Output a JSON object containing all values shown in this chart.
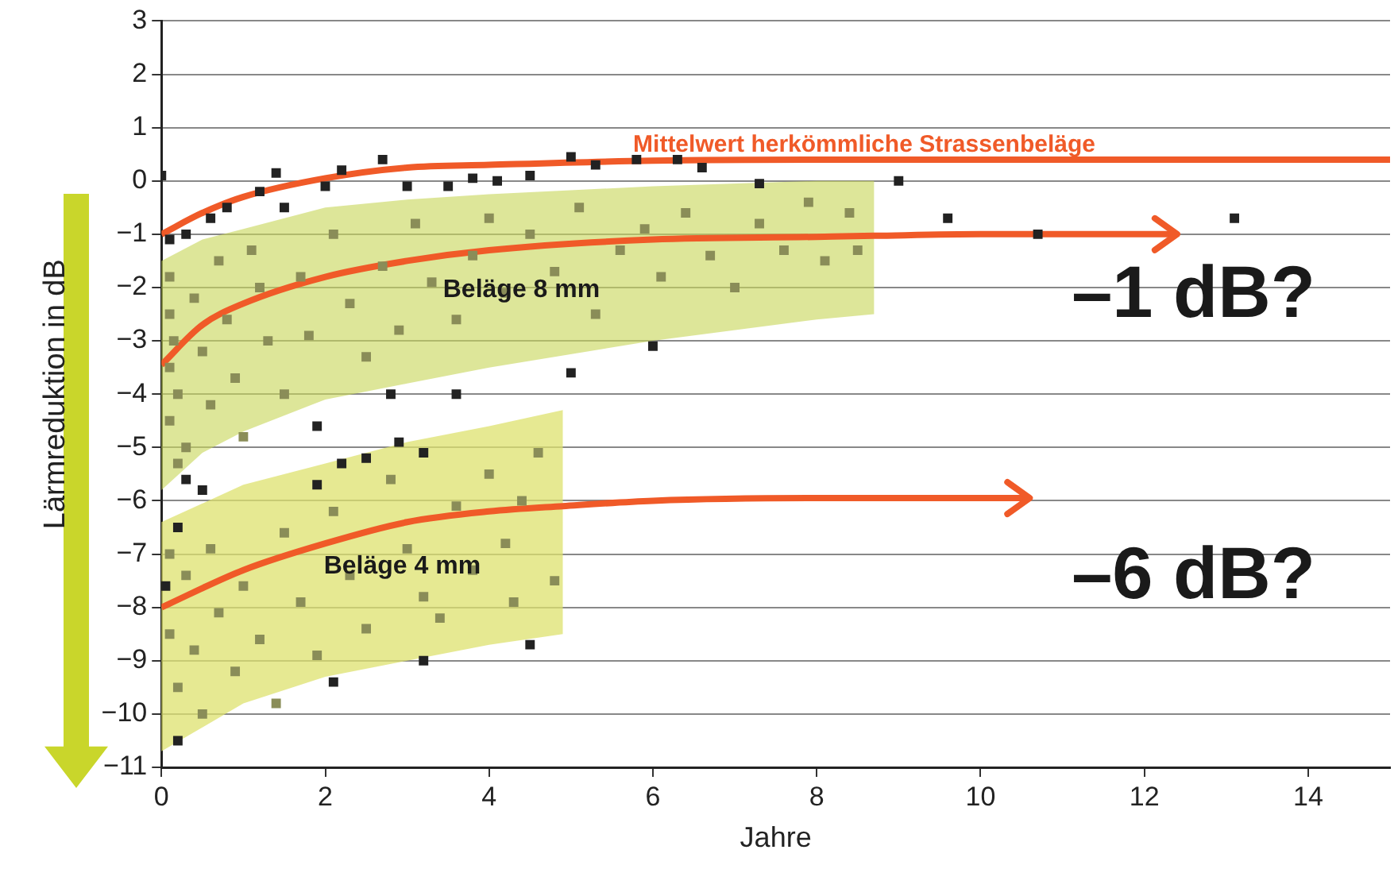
{
  "chart_data": {
    "type": "scatter",
    "xlabel": "Jahre",
    "ylabel": "Lärmreduktion in dB",
    "xlim": [
      0,
      15
    ],
    "xticks": [
      0,
      2,
      4,
      6,
      8,
      10,
      12,
      14
    ],
    "ylim": [
      -11,
      3
    ],
    "yticks": [
      {
        "value": -11,
        "label": "−11"
      },
      {
        "value": -10,
        "label": "−10"
      },
      {
        "value": -9,
        "label": "−9"
      },
      {
        "value": -8,
        "label": "−8"
      },
      {
        "value": -7,
        "label": "−7"
      },
      {
        "value": -6,
        "label": "−6"
      },
      {
        "value": -5,
        "label": "−5"
      },
      {
        "value": -4,
        "label": "−4"
      },
      {
        "value": -3,
        "label": "−3"
      },
      {
        "value": -2,
        "label": "−2"
      },
      {
        "value": -1,
        "label": "−1"
      },
      0,
      1,
      2,
      3
    ],
    "grid": "y",
    "legend": false,
    "marker": "square",
    "series": [
      {
        "color": "#8a8d58",
        "x": [
          0.1,
          0.1,
          0.15,
          0.1,
          0.2,
          0.1,
          0.3,
          0.2,
          0.4,
          0.5,
          0.6,
          0.7,
          0.8,
          0.9,
          1.0,
          1.1,
          1.2,
          1.3,
          1.5,
          1.7,
          1.8,
          2.1,
          2.3,
          2.5,
          2.7,
          2.9,
          3.1,
          3.3,
          3.6,
          3.8,
          4.0,
          4.2,
          4.5,
          4.8,
          5.1,
          5.3,
          5.6,
          5.9,
          6.1,
          6.4,
          6.7,
          7.0,
          7.3,
          7.6,
          7.9,
          8.1,
          8.4,
          8.5,
          0.1,
          0.1,
          0.2,
          0.3,
          0.4,
          0.5,
          0.6,
          0.7,
          0.9,
          1.0,
          1.2,
          1.4,
          1.5,
          1.7,
          1.9,
          2.1,
          2.3,
          2.5,
          2.8,
          3.0,
          3.2,
          3.4,
          3.6,
          3.8,
          4.0,
          4.2,
          4.3,
          4.6,
          4.8,
          4.4
        ],
        "values": [
          -1.8,
          -2.5,
          -3,
          -3.5,
          -4,
          -4.5,
          -5,
          -5.3,
          -2.2,
          -3.2,
          -4.2,
          -1.5,
          -2.6,
          -3.7,
          -4.8,
          -1.3,
          -2.0,
          -3.0,
          -4.0,
          -1.8,
          -2.9,
          -1.0,
          -2.3,
          -3.3,
          -1.6,
          -2.8,
          -0.8,
          -1.9,
          -2.6,
          -1.4,
          -0.7,
          -2.1,
          -1.0,
          -1.7,
          -0.5,
          -2.5,
          -1.3,
          -0.9,
          -1.8,
          -0.6,
          -1.4,
          -2.0,
          -0.8,
          -1.3,
          -0.4,
          -1.5,
          -0.6,
          -1.3,
          -7,
          -8.5,
          -9.5,
          -7.4,
          -8.8,
          -10,
          -6.9,
          -8.1,
          -9.2,
          -7.6,
          -8.6,
          -9.8,
          -6.6,
          -7.9,
          -8.9,
          -6.2,
          -7.4,
          -8.4,
          -5.6,
          -6.9,
          -7.8,
          -8.2,
          -6.1,
          -7.3,
          -5.5,
          -6.8,
          -7.9,
          -5.1,
          -7.5,
          -6.0
        ]
      },
      {
        "color": "#222222",
        "x": [
          0,
          0.1,
          0.3,
          0.6,
          0.8,
          1.2,
          1.5,
          1.4,
          2.0,
          2.2,
          2.7,
          3.0,
          3.5,
          3.8,
          4.1,
          4.5,
          5,
          5.3,
          5.8,
          6.3,
          6.6,
          7.3,
          9.0,
          9.6,
          10.7,
          13.1,
          6,
          5.0,
          3.6,
          2.8,
          2.9,
          1.9,
          3.2,
          2.2,
          0.3,
          0.5,
          0.2,
          0.05,
          4.5,
          3.2,
          2.1,
          0.2,
          1.9,
          2.5
        ],
        "values": [
          0.1,
          -1.1,
          -1.0,
          -0.7,
          -0.5,
          -0.2,
          -0.5,
          0.15,
          -0.1,
          0.2,
          0.4,
          -0.1,
          -0.1,
          0.05,
          0,
          0.1,
          0.45,
          0.3,
          0.4,
          0.4,
          0.25,
          -0.05,
          0,
          -0.7,
          -1.0,
          -0.7,
          -3.1,
          -3.6,
          -4.0,
          -4.0,
          -4.9,
          -4.6,
          -5.1,
          -5.3,
          -5.6,
          -5.8,
          -6.5,
          -7.6,
          -8.7,
          -9.0,
          -9.4,
          -10.5,
          -5.7,
          -5.2
        ]
      },
      {
        "type": "line",
        "color": "#f05a28",
        "marker": "none",
        "x": [
          0,
          0.5,
          1,
          2,
          3,
          4,
          6,
          8,
          15
        ],
        "values": [
          -1.0,
          -0.6,
          -0.3,
          0.05,
          0.25,
          0.3,
          0.38,
          0.4,
          0.4
        ]
      },
      {
        "type": "line",
        "color": "#f05a28",
        "marker": "none",
        "x": [
          0,
          0.5,
          1,
          2,
          3,
          4,
          6,
          8,
          8.7,
          10,
          12.4
        ],
        "values": [
          -3.45,
          -2.7,
          -2.3,
          -1.8,
          -1.5,
          -1.3,
          -1.1,
          -1.05,
          -1.03,
          -1.0,
          -1.0
        ],
        "lower": [
          -5.8,
          -5.1,
          -4.7,
          -4.1,
          -3.8,
          -3.5,
          -3.0,
          -2.6,
          -2.5,
          null,
          null
        ],
        "upper": [
          -1.5,
          -1.1,
          -0.9,
          -0.5,
          -0.35,
          -0.25,
          -0.1,
          0,
          0,
          null,
          null
        ]
      },
      {
        "type": "line",
        "color": "#f05a28",
        "marker": "none",
        "x": [
          0,
          1,
          2,
          3,
          4,
          4.9,
          6,
          8,
          10.6
        ],
        "values": [
          -8.0,
          -7.3,
          -6.8,
          -6.4,
          -6.2,
          -6.1,
          -6.0,
          -5.95,
          -5.95
        ],
        "lower": [
          -10.7,
          -9.8,
          -9.3,
          -9.0,
          -8.7,
          -8.5,
          null,
          null,
          null
        ],
        "upper": [
          -6.4,
          -5.7,
          -5.3,
          -4.9,
          -4.6,
          -4.3,
          null,
          null,
          null
        ]
      }
    ],
    "annotations": [
      "Mittelwert herkömmliche Strassenbeläge",
      "Beläge 8 mm",
      "Beläge 4 mm",
      "–1 dB?",
      "–6 dB?"
    ]
  }
}
